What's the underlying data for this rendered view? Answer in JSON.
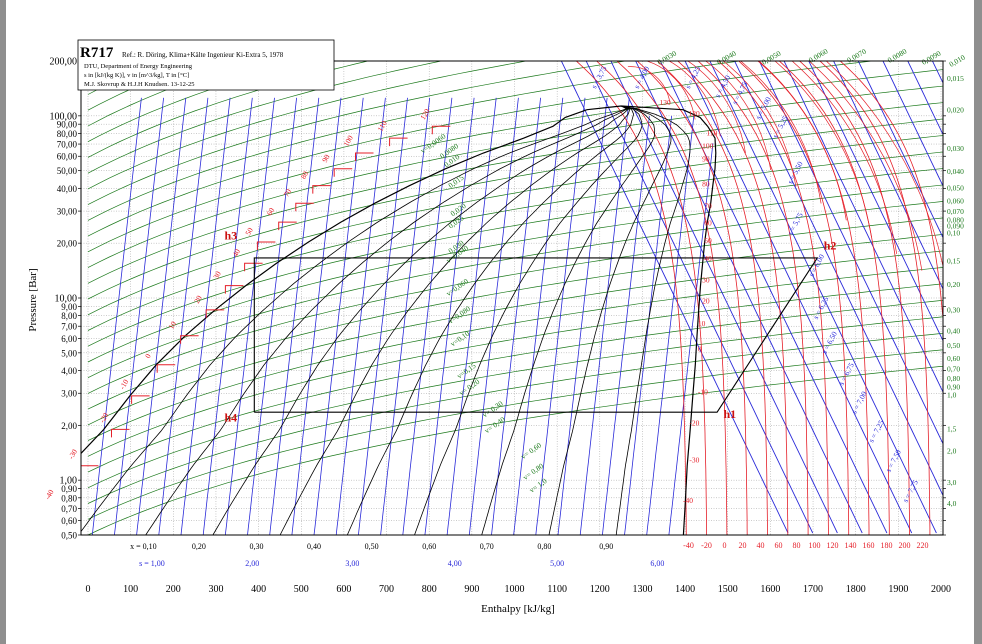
{
  "chart_data": {
    "type": "line",
    "title": "R717",
    "reference": "Ref.: R. Döring, Klima+Kälte Ingenieur Ki-Extra 5, 1978",
    "credits": [
      "DTU, Department of Energy Engineering",
      "s in [kJ/(kg K)], v in [m^3/kg], T in [°C]",
      "M.J. Skovrup & H.J.H Knudsen. 13-12-25"
    ],
    "xlabel": "Enthalpy [kJ/kg]",
    "ylabel": "Pressure [Bar]",
    "x_scale": "linear",
    "y_scale": "log",
    "xlim": [
      -50,
      2000
    ],
    "ylim": [
      0.5,
      200
    ],
    "grid": true,
    "x_ticks": [
      "0",
      "100",
      "200",
      "300",
      "400",
      "500",
      "600",
      "700",
      "800",
      "900",
      "1000",
      "1100",
      "1200",
      "1300",
      "1400",
      "1500",
      "1600",
      "1700",
      "1800",
      "1900",
      "2000"
    ],
    "y_ticks": [
      {
        "p": 200,
        "label": "200,00"
      },
      {
        "p": 100,
        "label": "100,00"
      },
      {
        "p": 90,
        "label": "90,00"
      },
      {
        "p": 80,
        "label": "80,00"
      },
      {
        "p": 70,
        "label": "70,00"
      },
      {
        "p": 60,
        "label": "60,00"
      },
      {
        "p": 50,
        "label": "50,00"
      },
      {
        "p": 40,
        "label": "40,00"
      },
      {
        "p": 30,
        "label": "30,00"
      },
      {
        "p": 20,
        "label": "20,00"
      },
      {
        "p": 10,
        "label": "10,00"
      },
      {
        "p": 9,
        "label": "9,00"
      },
      {
        "p": 8,
        "label": "8,00"
      },
      {
        "p": 7,
        "label": "7,00"
      },
      {
        "p": 6,
        "label": "6,00"
      },
      {
        "p": 5,
        "label": "5,00"
      },
      {
        "p": 4,
        "label": "4,00"
      },
      {
        "p": 3,
        "label": "3,00"
      },
      {
        "p": 2,
        "label": "2,00"
      },
      {
        "p": 1,
        "label": "1,00"
      },
      {
        "p": 0.9,
        "label": "0,90"
      },
      {
        "p": 0.8,
        "label": "0,80"
      },
      {
        "p": 0.7,
        "label": "0,70"
      },
      {
        "p": 0.6,
        "label": "0,60"
      },
      {
        "p": 0.5,
        "label": "0,50"
      }
    ],
    "quality_labels": [
      {
        "h": 130,
        "text": "x = 0,10"
      },
      {
        "h": 260,
        "text": "0,20"
      },
      {
        "h": 395,
        "text": "0,30"
      },
      {
        "h": 530,
        "text": "0,40"
      },
      {
        "h": 665,
        "text": "0,50"
      },
      {
        "h": 800,
        "text": "0,60"
      },
      {
        "h": 935,
        "text": "0,70"
      },
      {
        "h": 1070,
        "text": "0,80"
      },
      {
        "h": 1215,
        "text": "0,90"
      }
    ],
    "entropy_axis_labels": [
      {
        "h": 150,
        "text": "s = 1,00"
      },
      {
        "h": 385,
        "text": "2,00"
      },
      {
        "h": 620,
        "text": "3,00"
      },
      {
        "h": 860,
        "text": "4,00"
      },
      {
        "h": 1100,
        "text": "5,00"
      },
      {
        "h": 1335,
        "text": "6,00"
      }
    ],
    "temperature_axis_labels": [
      "-40",
      "-20",
      "0",
      "20",
      "40",
      "60",
      "80",
      "100",
      "120",
      "140",
      "160",
      "180",
      "200",
      "220"
    ],
    "saturation_dome": {
      "liquid": [
        [
          -180,
          0.5
        ],
        [
          -125,
          0.72
        ],
        [
          -44,
          1.2
        ],
        [
          37,
          1.9
        ],
        [
          98,
          2.9
        ],
        [
          160,
          4.3
        ],
        [
          228,
          6.2
        ],
        [
          298,
          8.6
        ],
        [
          370,
          11.7
        ],
        [
          442,
          15.5
        ],
        [
          517,
          20.3
        ],
        [
          593,
          26.1
        ],
        [
          672,
          33.1
        ],
        [
          754,
          41.4
        ],
        [
          838,
          51.2
        ],
        [
          927,
          62.5
        ],
        [
          1022,
          75.5
        ],
        [
          1090,
          87.6
        ],
        [
          1119,
          98
        ],
        [
          1170,
          108
        ],
        [
          1250,
          113.3
        ]
      ],
      "vapor": [
        [
          1250,
          113.3
        ],
        [
          1395,
          108
        ],
        [
          1435,
          98
        ],
        [
          1453,
          87.6
        ],
        [
          1470,
          75.5
        ],
        [
          1472,
          62.5
        ],
        [
          1470,
          51.2
        ],
        [
          1465,
          41.4
        ],
        [
          1460,
          33.1
        ],
        [
          1452,
          26.1
        ],
        [
          1446,
          20.3
        ],
        [
          1441,
          15.5
        ],
        [
          1436,
          11.7
        ],
        [
          1432,
          8.6
        ],
        [
          1428,
          6.2
        ],
        [
          1424,
          4.3
        ],
        [
          1418,
          2.9
        ],
        [
          1412,
          1.9
        ],
        [
          1405,
          1.2
        ],
        [
          1400,
          0.72
        ],
        [
          1396,
          0.5
        ]
      ]
    },
    "isotherms": [
      {
        "t": "-40",
        "h": -40,
        "p": 0.72
      },
      {
        "t": "-30",
        "h": 15,
        "p": 1.2
      },
      {
        "t": "-20",
        "h": 88,
        "p": 1.9
      },
      {
        "t": "-10",
        "h": 135,
        "p": 2.9
      },
      {
        "t": "0",
        "h": 195,
        "p": 4.3
      },
      {
        "t": "10",
        "h": 250,
        "p": 6.2
      },
      {
        "t": "20",
        "h": 310,
        "p": 8.6
      },
      {
        "t": "30",
        "h": 355,
        "p": 11.7
      },
      {
        "t": "40",
        "h": 400,
        "p": 15.5
      },
      {
        "t": "50",
        "h": 430,
        "p": 20.3
      },
      {
        "t": "60",
        "h": 480,
        "p": 26.1
      },
      {
        "t": "70",
        "h": 520,
        "p": 33.1
      },
      {
        "t": "80",
        "h": 560,
        "p": 41.4
      },
      {
        "t": "90",
        "h": 610,
        "p": 51.2
      },
      {
        "t": "100",
        "h": 660,
        "p": 62.5
      },
      {
        "t": "110",
        "h": 740,
        "p": 75.5
      },
      {
        "t": "120",
        "h": 840,
        "p": 87.6
      }
    ],
    "specific_volume_labels": [
      {
        "h": 785,
        "p": 62,
        "text": "v=0,0060"
      },
      {
        "h": 830,
        "p": 58,
        "text": "0,0080"
      },
      {
        "h": 840,
        "p": 52,
        "text": "0,010"
      },
      {
        "h": 850,
        "p": 40,
        "text": "0,015"
      },
      {
        "h": 855,
        "p": 28,
        "text": "0,020"
      },
      {
        "h": 850,
        "p": 24,
        "text": "0,025"
      },
      {
        "h": 850,
        "p": 17.5,
        "text": "0,030"
      },
      {
        "h": 845,
        "p": 15.5,
        "text": "v=0,040"
      },
      {
        "h": 845,
        "p": 10.2,
        "text": "v=0,060"
      },
      {
        "h": 850,
        "p": 7.2,
        "text": "v=0,080"
      },
      {
        "h": 855,
        "p": 5.4,
        "text": "v=0,10"
      },
      {
        "h": 870,
        "p": 3.6,
        "text": "v=0,15"
      },
      {
        "h": 875,
        "p": 2.9,
        "text": "v= 0,20"
      },
      {
        "h": 930,
        "p": 2.2,
        "text": "v= 0,30"
      },
      {
        "h": 935,
        "p": 1.8,
        "text": "v= 0,40"
      },
      {
        "h": 1020,
        "p": 1.3,
        "text": "v= 0,60"
      },
      {
        "h": 1025,
        "p": 1.0,
        "text": "v= 0,80"
      },
      {
        "h": 1040,
        "p": 0.85,
        "text": "v= 1,0"
      }
    ],
    "entropy_labels": [
      {
        "h": 1190,
        "p": 140,
        "text": "s = 3,75"
      },
      {
        "h": 1290,
        "p": 140,
        "text": "s = 4,00"
      },
      {
        "h": 1410,
        "p": 140,
        "text": "s = 4,25"
      },
      {
        "h": 1480,
        "p": 125,
        "text": "s = 4,50"
      },
      {
        "h": 1520,
        "p": 115,
        "text": "s = 4,75"
      },
      {
        "h": 1575,
        "p": 95,
        "text": "s = 5,00"
      },
      {
        "h": 1615,
        "p": 75,
        "text": "s = 5,25"
      },
      {
        "h": 1650,
        "p": 42,
        "text": "s = 5,50"
      },
      {
        "h": 1650,
        "p": 22,
        "text": "s = 5,75"
      },
      {
        "h": 1700,
        "p": 13,
        "text": "s = 6,00"
      },
      {
        "h": 1710,
        "p": 7.6,
        "text": "s = 6,25"
      },
      {
        "h": 1730,
        "p": 4.9,
        "text": "s = 6,50"
      },
      {
        "h": 1770,
        "p": 3.3,
        "text": "s = 6,75"
      },
      {
        "h": 1800,
        "p": 2.3,
        "text": "s = 7,00"
      },
      {
        "h": 1840,
        "p": 1.6,
        "text": "s = 7,25"
      },
      {
        "h": 1880,
        "p": 1.1,
        "text": "s = 7,50"
      },
      {
        "h": 1920,
        "p": 0.75,
        "text": "s = 7,75"
      }
    ],
    "superheat_isotherm_labels": [
      {
        "h": 1340,
        "p": 115,
        "text": "130"
      },
      {
        "h": 1408,
        "p": 100,
        "text": "120"
      },
      {
        "h": 1450,
        "p": 78,
        "text": "110"
      },
      {
        "h": 1440,
        "p": 66,
        "text": "100"
      },
      {
        "h": 1440,
        "p": 56,
        "text": "90"
      },
      {
        "h": 1440,
        "p": 41,
        "text": "80"
      },
      {
        "h": 1445,
        "p": 31,
        "text": "70"
      },
      {
        "h": 1445,
        "p": 25,
        "text": "60"
      },
      {
        "h": 1445,
        "p": 20,
        "text": "50"
      },
      {
        "h": 1445,
        "p": 16,
        "text": "40"
      },
      {
        "h": 1440,
        "p": 12.2,
        "text": "30"
      },
      {
        "h": 1440,
        "p": 9.3,
        "text": "20"
      },
      {
        "h": 1430,
        "p": 7.0,
        "text": "10"
      },
      {
        "h": 1430,
        "p": 5.1,
        "text": "0"
      },
      {
        "h": 1430,
        "p": 2.95,
        "text": "-10"
      },
      {
        "h": 1410,
        "p": 2.0,
        "text": "-20"
      },
      {
        "h": 1410,
        "p": 1.25,
        "text": "-30"
      },
      {
        "h": 1395,
        "p": 0.75,
        "text": "-40"
      }
    ],
    "right_volume_labels": [
      {
        "h": 1325,
        "p": 190,
        "text": "0,0030"
      },
      {
        "h": 1465,
        "p": 190,
        "text": "0,0040"
      },
      {
        "h": 1570,
        "p": 190,
        "text": "0,0050"
      },
      {
        "h": 1680,
        "p": 195,
        "text": "0,0060"
      },
      {
        "h": 1770,
        "p": 195,
        "text": "0,0070"
      },
      {
        "h": 1865,
        "p": 195,
        "text": "0,0080"
      },
      {
        "h": 1945,
        "p": 190,
        "text": "0,0090"
      },
      {
        "h": 2040,
        "p": 185,
        "text": "0,010"
      },
      {
        "h": 2000,
        "p": 155,
        "text": "0,015"
      },
      {
        "h": 2000,
        "p": 104,
        "text": "0,020"
      },
      {
        "h": 2000,
        "p": 64,
        "text": "0,030"
      },
      {
        "h": 2000,
        "p": 48,
        "text": "0,040"
      },
      {
        "h": 2000,
        "p": 39,
        "text": "0,050"
      },
      {
        "h": 2000,
        "p": 33,
        "text": "0,060"
      },
      {
        "h": 2000,
        "p": 29,
        "text": "0,070"
      },
      {
        "h": 2000,
        "p": 26,
        "text": "0,080"
      },
      {
        "h": 2000,
        "p": 24,
        "text": "0,090"
      },
      {
        "h": 2000,
        "p": 22,
        "text": "0,10"
      },
      {
        "h": 2000,
        "p": 15.5,
        "text": "0,15"
      },
      {
        "h": 2000,
        "p": 11.5,
        "text": "0,20"
      },
      {
        "h": 2000,
        "p": 8.3,
        "text": "0,30"
      },
      {
        "h": 2000,
        "p": 6.4,
        "text": "0,40"
      },
      {
        "h": 2000,
        "p": 5.3,
        "text": "0,50"
      },
      {
        "h": 2000,
        "p": 4.5,
        "text": "0,60"
      },
      {
        "h": 2000,
        "p": 3.95,
        "text": "0,70"
      },
      {
        "h": 2000,
        "p": 3.5,
        "text": "0,80"
      },
      {
        "h": 2000,
        "p": 3.15,
        "text": "0,90"
      },
      {
        "h": 2000,
        "p": 2.85,
        "text": "1,0"
      },
      {
        "h": 2000,
        "p": 1.85,
        "text": "1,5"
      },
      {
        "h": 2000,
        "p": 1.4,
        "text": "2,0"
      },
      {
        "h": 2000,
        "p": 0.94,
        "text": "3,0"
      },
      {
        "h": 2000,
        "p": 0.72,
        "text": "4,0"
      }
    ],
    "cycle": {
      "p_high": 16.6,
      "p_low": 2.36,
      "h1": 1475,
      "h2": 1710,
      "h3": 390,
      "h4": 390,
      "labels": [
        {
          "text": "h1",
          "h": 1490,
          "p": 2.2
        },
        {
          "text": "h2",
          "h": 1725,
          "p": 18.5
        },
        {
          "text": "h3",
          "h": 320,
          "p": 21
        },
        {
          "text": "h4",
          "h": 320,
          "p": 2.1
        }
      ]
    },
    "colors": {
      "isotherm": "#e5202a",
      "isentrope": "#2b2bd9",
      "isochore": "#1d7a1d",
      "dome": "#000000",
      "quality": "#000000",
      "grid": "#9a9a9a",
      "cycle": "#000000",
      "annotation": "#cc1111",
      "entropy_text": "#2b2bd9",
      "volume_text": "#1d7a1d"
    }
  }
}
